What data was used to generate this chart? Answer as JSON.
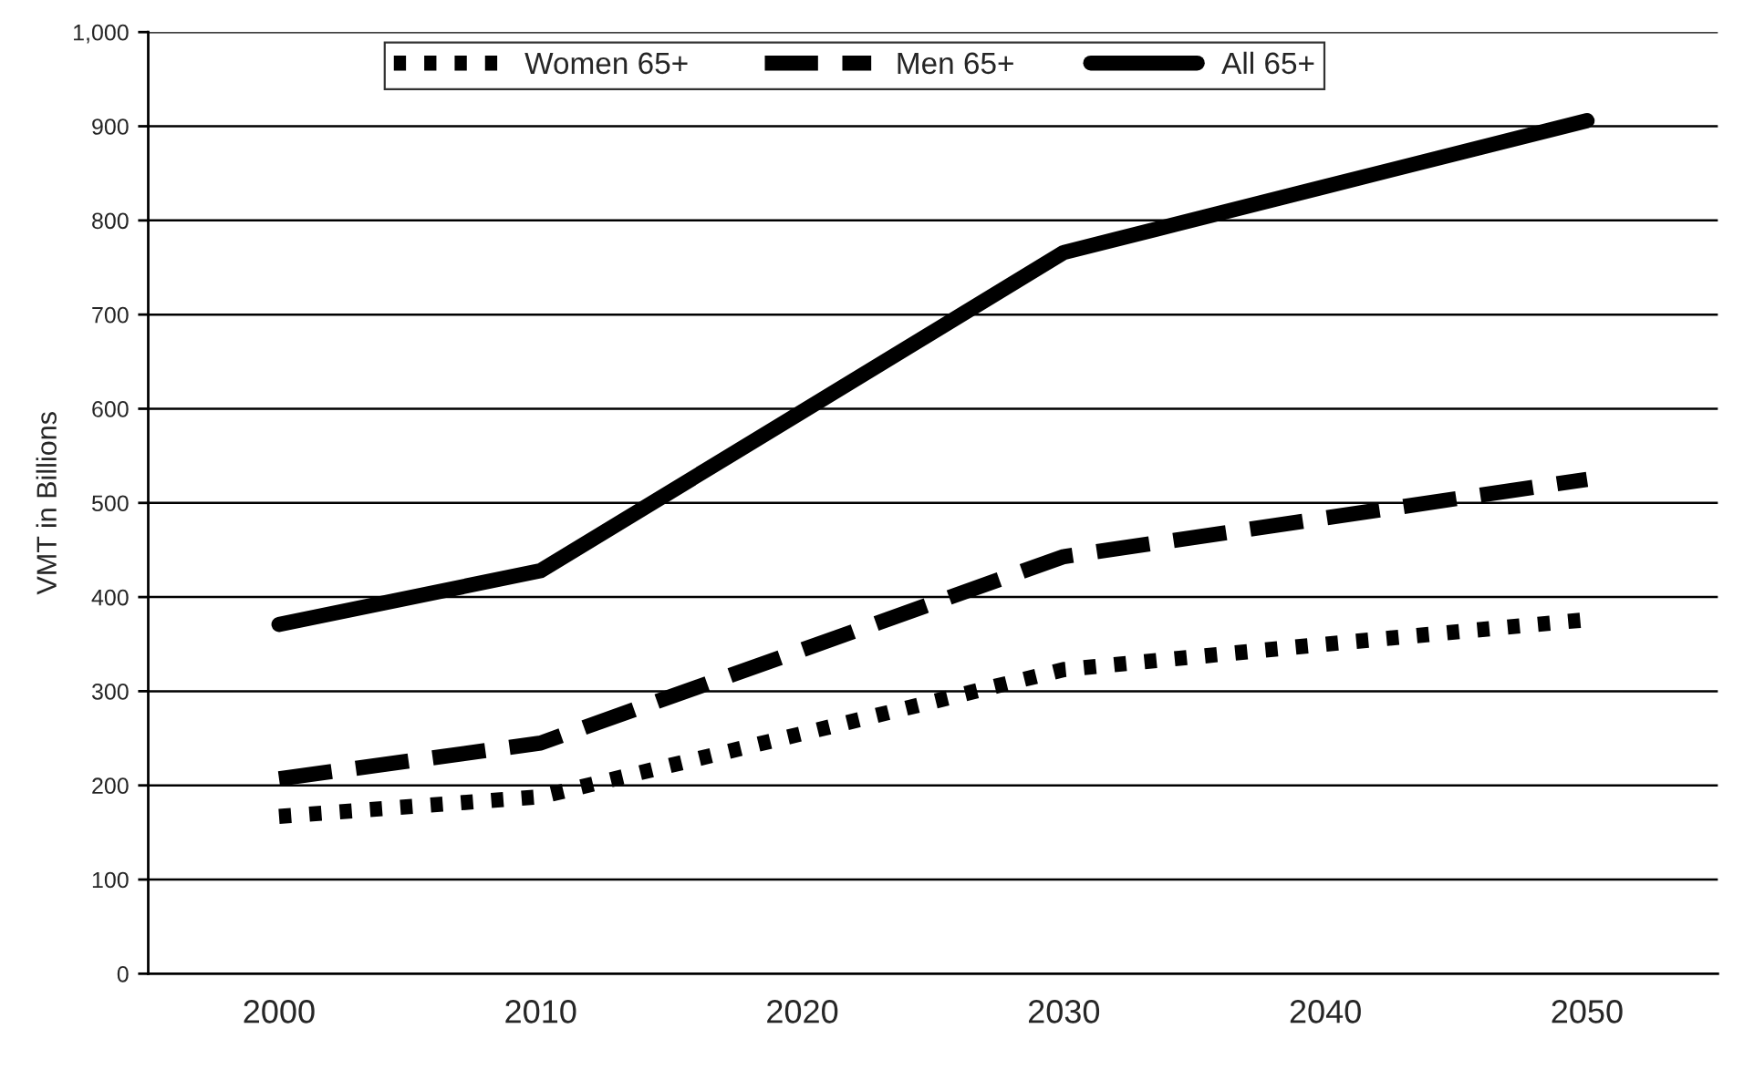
{
  "chart_data": {
    "type": "line",
    "ylabel": "VMT in Billions",
    "categories": [
      "2000",
      "2010",
      "2020",
      "2030",
      "2040",
      "2050"
    ],
    "series": [
      {
        "name": "Women 65+",
        "color": "#000000",
        "line_style": "dotted",
        "values": [
          167,
          188,
          255,
          323,
          350,
          376
        ]
      },
      {
        "name": "Men 65+",
        "color": "#000000",
        "line_style": "dashed",
        "values": [
          207,
          245,
          344,
          443,
          484,
          525
        ]
      },
      {
        "name": "All 65+",
        "color": "#000000",
        "line_style": "solid",
        "values": [
          371,
          428,
          597,
          766,
          836,
          906
        ]
      }
    ],
    "ylim": [
      0,
      1000
    ],
    "yticks": [
      0,
      100,
      200,
      300,
      400,
      500,
      600,
      700,
      800,
      900,
      {
        "value": 1000,
        "label": "1,000"
      }
    ],
    "grid": "y",
    "legend": "top",
    "marker": "none"
  }
}
